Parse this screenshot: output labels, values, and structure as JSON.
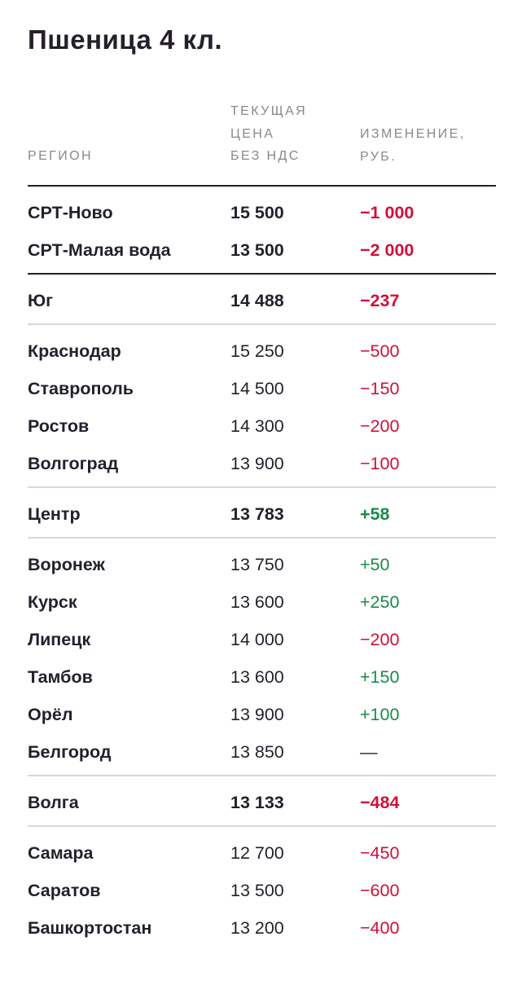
{
  "title": "Пшеница 4 кл.",
  "columns": {
    "region": "РЕГИОН",
    "price_lines": [
      "ТЕКУЩАЯ",
      "ЦЕНА",
      "БЕЗ НДС"
    ],
    "change_lines": [
      "ИЗМЕНЕНИЕ,",
      "РУБ."
    ]
  },
  "rows": [
    {
      "name": "СРТ-Ново",
      "price": "15 500",
      "change": "−1 000",
      "trend": "neg",
      "bold": true
    },
    {
      "name": "СРТ-Малая вода",
      "price": "13 500",
      "change": "−2 000",
      "trend": "neg",
      "bold": true
    },
    {
      "name": "Юг",
      "price": "14 488",
      "change": "−237",
      "trend": "neg",
      "bold": true
    },
    {
      "name": "Краснодар",
      "price": "15 250",
      "change": "−500",
      "trend": "neg",
      "bold": false
    },
    {
      "name": "Ставрополь",
      "price": "14 500",
      "change": "−150",
      "trend": "neg",
      "bold": false
    },
    {
      "name": "Ростов",
      "price": "14 300",
      "change": "−200",
      "trend": "neg",
      "bold": false
    },
    {
      "name": "Волгоград",
      "price": "13 900",
      "change": "−100",
      "trend": "neg",
      "bold": false
    },
    {
      "name": "Центр",
      "price": "13 783",
      "change": "+58",
      "trend": "pos",
      "bold": true
    },
    {
      "name": "Воронеж",
      "price": "13 750",
      "change": "+50",
      "trend": "pos",
      "bold": false
    },
    {
      "name": "Курск",
      "price": "13 600",
      "change": "+250",
      "trend": "pos",
      "bold": false
    },
    {
      "name": "Липецк",
      "price": "14 000",
      "change": "−200",
      "trend": "neg",
      "bold": false
    },
    {
      "name": "Тамбов",
      "price": "13 600",
      "change": "+150",
      "trend": "pos",
      "bold": false
    },
    {
      "name": "Орёл",
      "price": "13 900",
      "change": "+100",
      "trend": "pos",
      "bold": false
    },
    {
      "name": "Белгород",
      "price": "13 850",
      "change": "—",
      "trend": "neu",
      "bold": false
    },
    {
      "name": "Волга",
      "price": "13 133",
      "change": "−484",
      "trend": "neg",
      "bold": true
    },
    {
      "name": "Самара",
      "price": "12 700",
      "change": "−450",
      "trend": "neg",
      "bold": false
    },
    {
      "name": "Саратов",
      "price": "13 500",
      "change": "−600",
      "trend": "neg",
      "bold": false
    },
    {
      "name": "Башкортостан",
      "price": "13 200",
      "change": "−400",
      "trend": "neg",
      "bold": false
    }
  ],
  "colors": {
    "text": "#241f2b",
    "header": "#8a8690",
    "negative": "#d0103a",
    "positive": "#1b8a4a",
    "rule_dark": "#241f2b",
    "rule_light": "#d8d7dc"
  }
}
